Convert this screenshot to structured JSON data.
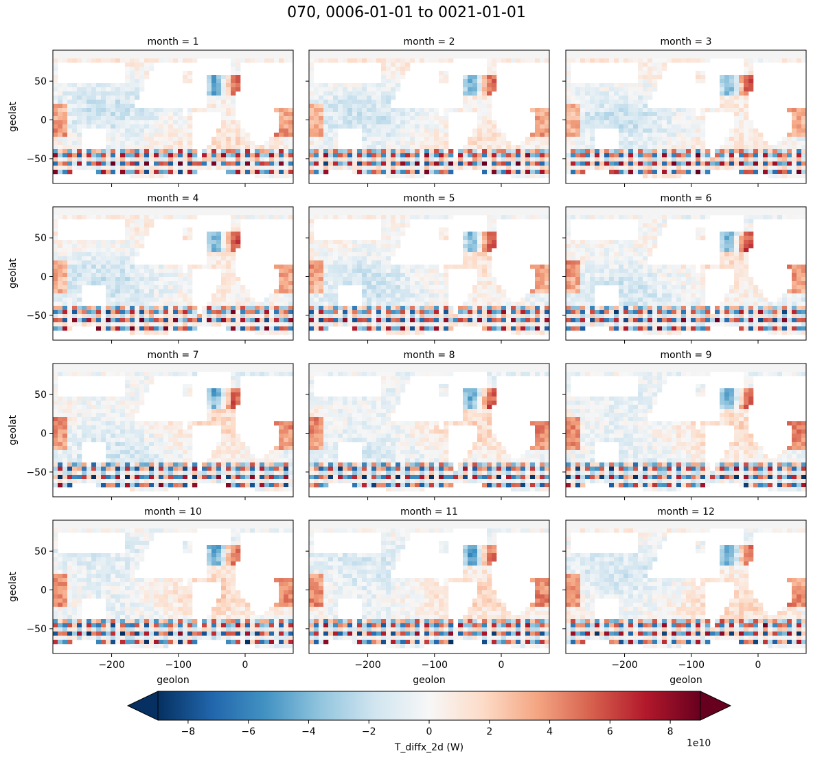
{
  "figure": {
    "title": "070, 0006-01-01 to 0021-01-01"
  },
  "chart_data": {
    "type": "heatmap",
    "title": "070, 0006-01-01 to 0021-01-01",
    "facet_variable": "month",
    "panel_titles": [
      "month = 1",
      "month = 2",
      "month = 3",
      "month = 4",
      "month = 5",
      "month = 6",
      "month = 7",
      "month = 8",
      "month = 9",
      "month = 10",
      "month = 11",
      "month = 12"
    ],
    "xlabel": "geolon",
    "ylabel": "geolat",
    "xlim": [
      -288,
      72
    ],
    "ylim": [
      -82,
      90
    ],
    "xticks": [
      -200,
      -100,
      0
    ],
    "xtick_labels": [
      "−200",
      "−100",
      "0"
    ],
    "yticks": [
      50,
      0,
      -50
    ],
    "ytick_labels": [
      "50",
      "0",
      "−50"
    ],
    "colorbar": {
      "label": "T_diffx_2d (W)",
      "scale_label": "1e10",
      "colormap": "RdBu_r",
      "vmin": -9,
      "vmax": 9,
      "extend": "both",
      "ticks": [
        -8,
        -6,
        -4,
        -2,
        0,
        2,
        4,
        6,
        8
      ],
      "tick_labels": [
        "−8",
        "−6",
        "−4",
        "−2",
        "0",
        "2",
        "4",
        "6",
        "8"
      ],
      "colors": [
        "#053061",
        "#2166ac",
        "#4393c3",
        "#92c5de",
        "#d1e5f0",
        "#f7f7f7",
        "#fddbc7",
        "#f4a582",
        "#d6604d",
        "#b2182b",
        "#67001f"
      ]
    },
    "land_color": "#ffffff",
    "grid": false
  }
}
